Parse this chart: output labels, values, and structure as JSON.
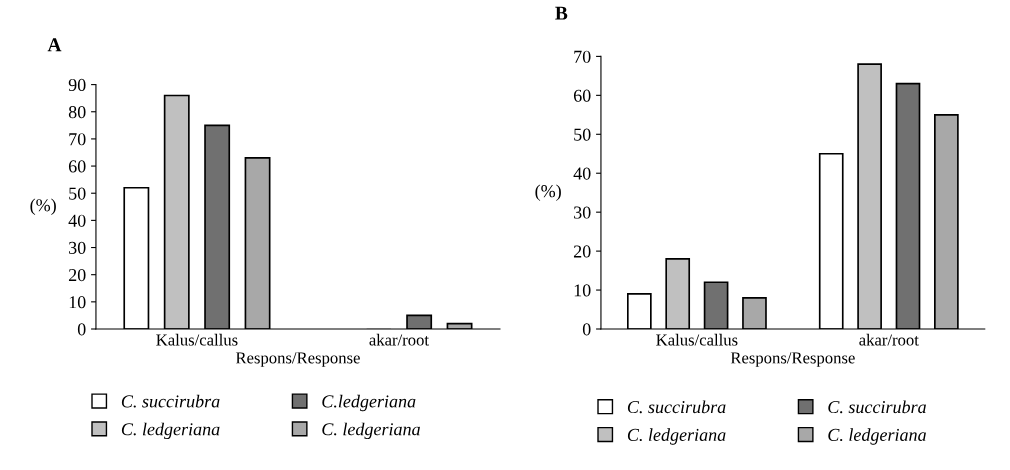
{
  "chart_data": [
    {
      "type": "bar",
      "title": "A",
      "ylabel": "(%)",
      "xlabel": "Respons/Response",
      "categories": [
        "Kalus/callus",
        "akar/root"
      ],
      "ylim": [
        0,
        90
      ],
      "yticks": [
        0,
        10,
        20,
        30,
        40,
        50,
        60,
        70,
        80,
        90
      ],
      "grid": false,
      "legend": "bottom",
      "series": [
        {
          "name": "C. succirubra",
          "color": "#ffffff",
          "values": [
            52,
            0
          ]
        },
        {
          "name": "C. ledgeriana",
          "color": "#c0c0c0",
          "values": [
            86,
            0
          ]
        },
        {
          "name": "C.ledgeriana",
          "color": "#707070",
          "values": [
            75,
            5
          ]
        },
        {
          "name": "C. ledgeriana",
          "color": "#a8a8a8",
          "values": [
            63,
            2
          ]
        }
      ]
    },
    {
      "type": "bar",
      "title": "B",
      "ylabel": "(%)",
      "xlabel": "Respons/Response",
      "categories": [
        "Kalus/callus",
        "akar/root"
      ],
      "ylim": [
        0,
        70
      ],
      "yticks": [
        0,
        10,
        20,
        30,
        40,
        50,
        60,
        70
      ],
      "grid": false,
      "legend": "bottom",
      "series": [
        {
          "name": "C. succirubra",
          "color": "#ffffff",
          "values": [
            9,
            45
          ]
        },
        {
          "name": "C. ledgeriana",
          "color": "#c0c0c0",
          "values": [
            18,
            68
          ]
        },
        {
          "name": "C. succirubra",
          "color": "#707070",
          "values": [
            12,
            63
          ]
        },
        {
          "name": "C. ledgeriana",
          "color": "#a8a8a8",
          "values": [
            8,
            55
          ]
        }
      ]
    }
  ]
}
